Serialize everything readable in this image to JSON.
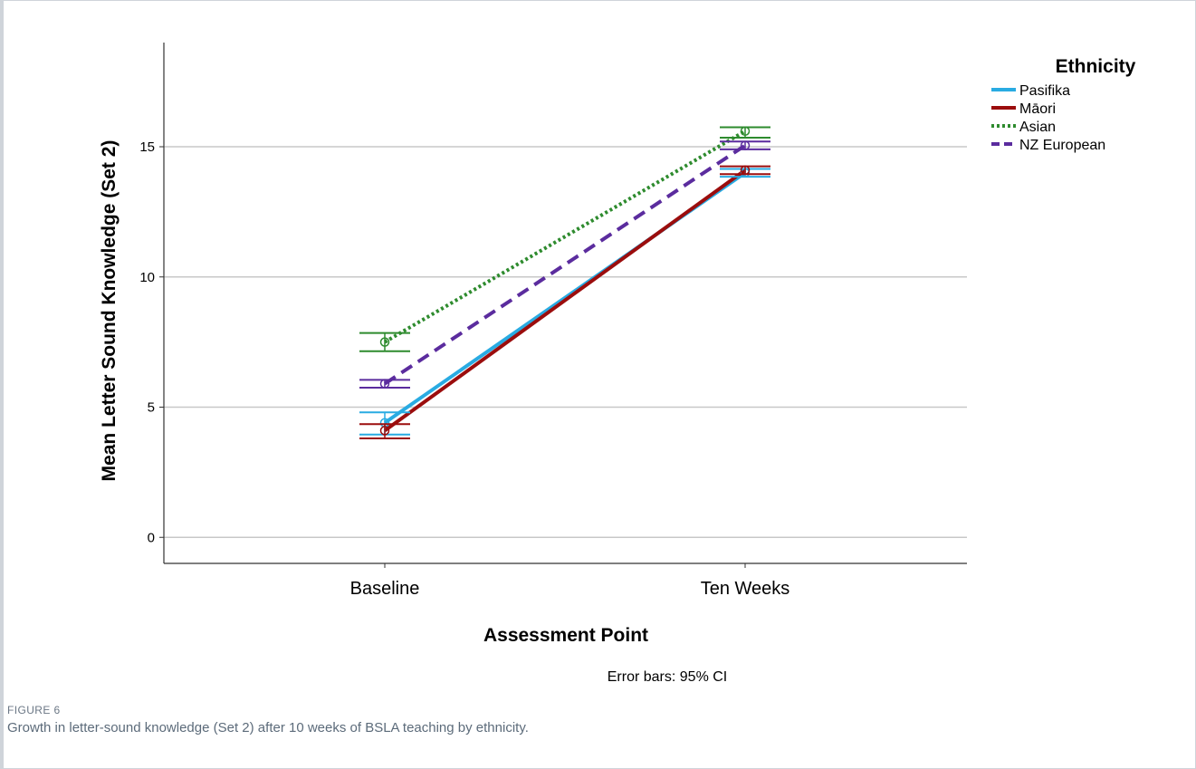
{
  "figure": {
    "label": "FIGURE 6",
    "caption": "Growth in letter-sound knowledge (Set 2) after 10 weeks of BSLA teaching by ethnicity."
  },
  "chart_data": {
    "type": "line",
    "title": "",
    "xlabel": "Assessment Point",
    "ylabel": "Mean Letter Sound Knowledge (Set 2)",
    "categories": [
      "Baseline",
      "Ten Weeks"
    ],
    "ylim": [
      -1,
      19
    ],
    "yticks": [
      0,
      5,
      10,
      15
    ],
    "grid": "horizontal",
    "legend": {
      "title": "Ethnicity",
      "position": "top-right"
    },
    "error_bar_note": "Error bars: 95% CI",
    "series": [
      {
        "name": "Pasifika",
        "color": "#29abe2",
        "dash": "solid",
        "width": 4,
        "values": [
          4.4,
          14.0
        ],
        "ci_low": [
          3.95,
          13.85
        ],
        "ci_high": [
          4.8,
          14.15
        ]
      },
      {
        "name": "Māori",
        "color": "#9b0d0d",
        "dash": "solid",
        "width": 4,
        "values": [
          4.1,
          14.1
        ],
        "ci_low": [
          3.8,
          13.95
        ],
        "ci_high": [
          4.35,
          14.25
        ]
      },
      {
        "name": "Asian",
        "color": "#2e8b2e",
        "dash": "dotted",
        "width": 4,
        "values": [
          7.5,
          15.6
        ],
        "ci_low": [
          7.15,
          15.35
        ],
        "ci_high": [
          7.85,
          15.75
        ]
      },
      {
        "name": "NZ European",
        "color": "#5b2c9e",
        "dash": "dashed",
        "width": 4,
        "values": [
          5.9,
          15.05
        ],
        "ci_low": [
          5.75,
          14.9
        ],
        "ci_high": [
          6.05,
          15.2
        ]
      }
    ]
  }
}
